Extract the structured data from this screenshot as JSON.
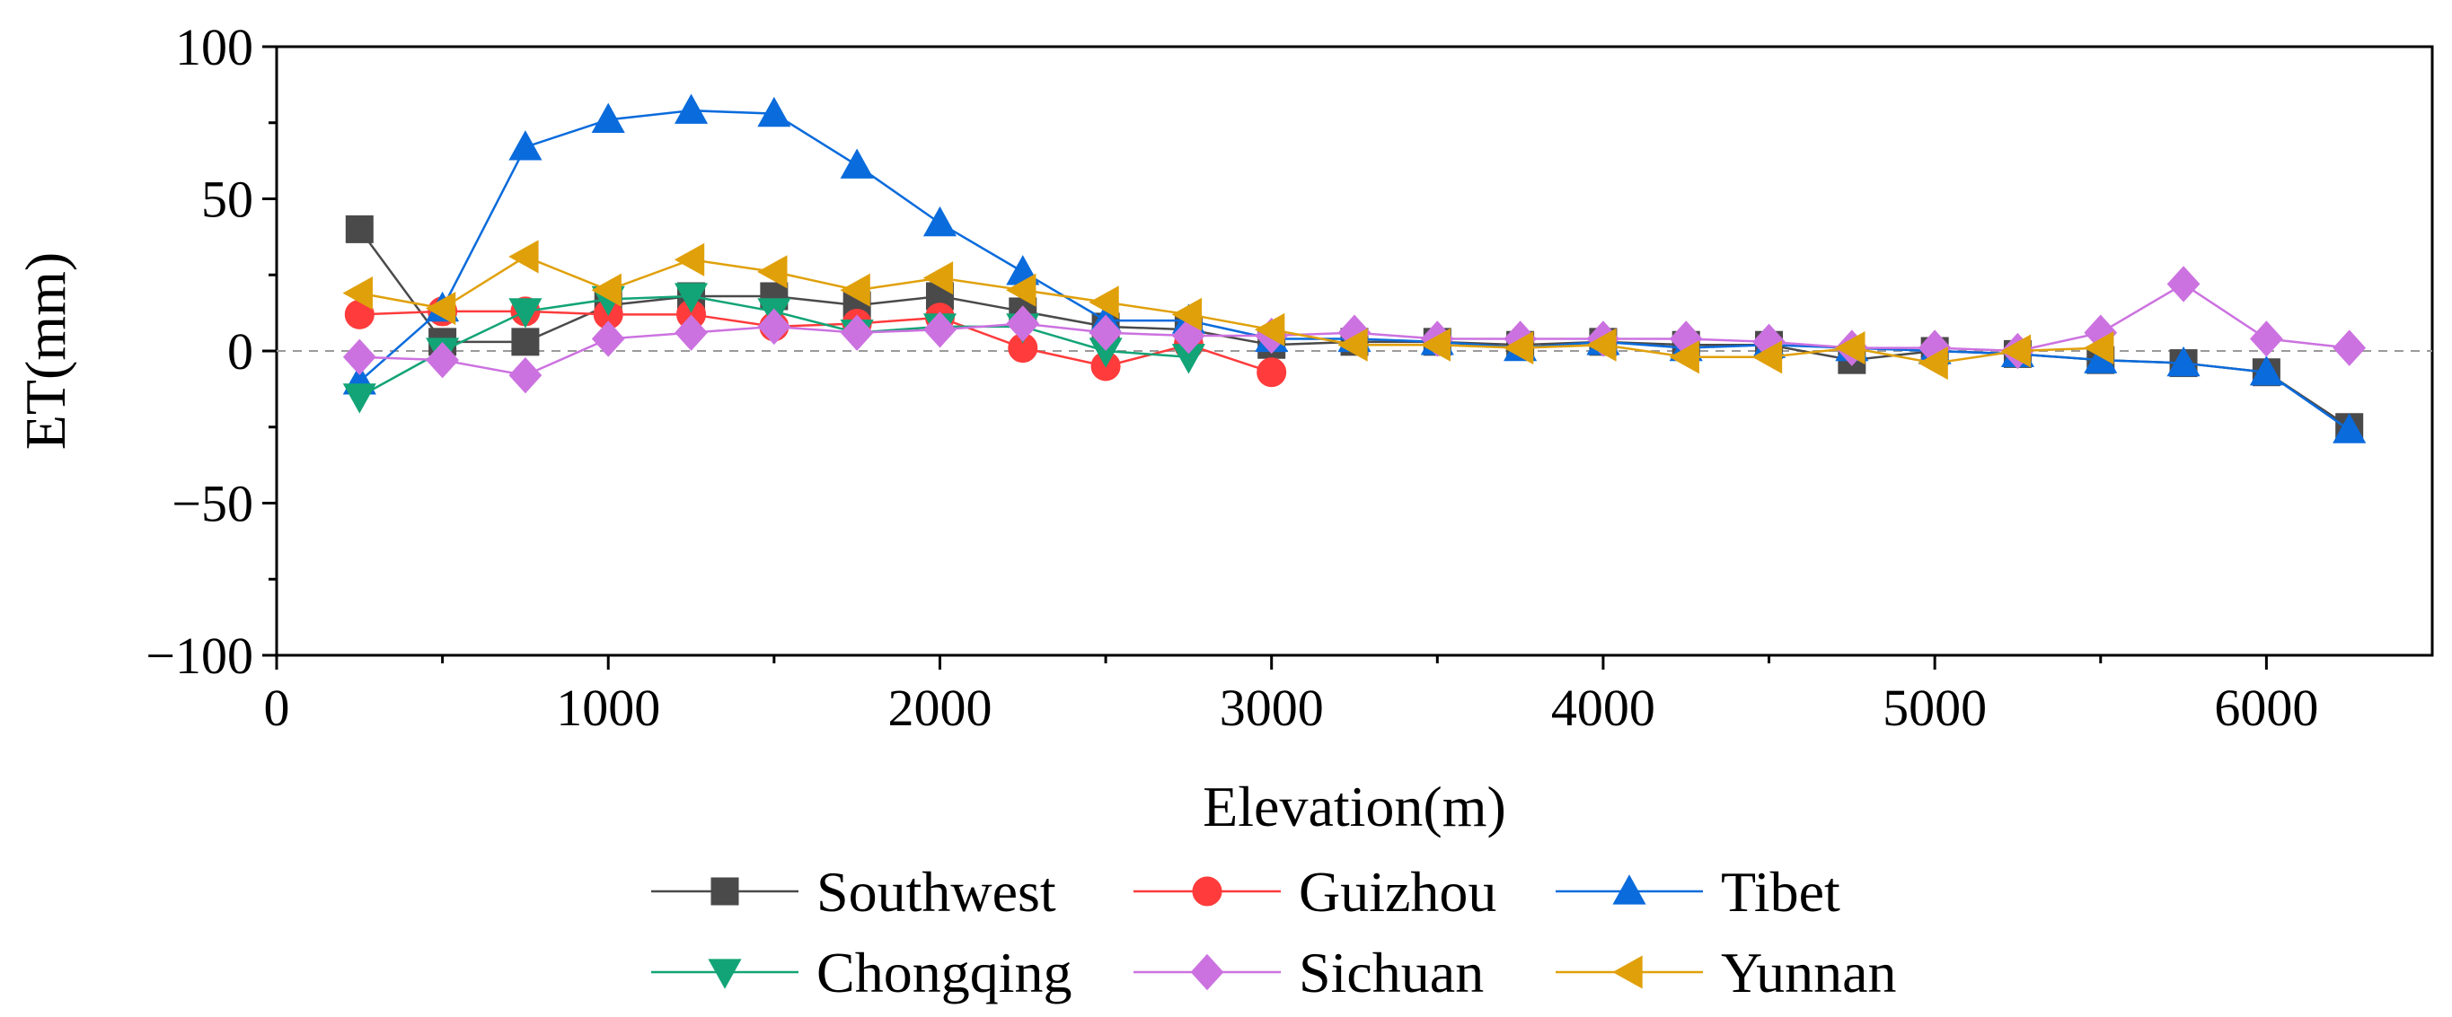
{
  "chart_data": {
    "type": "line",
    "title": "",
    "xlabel": "Elevation(m)",
    "ylabel": "ET(mm)",
    "xlim": [
      0,
      6500
    ],
    "ylim": [
      -100,
      100
    ],
    "x_ticks": [
      0,
      1000,
      2000,
      3000,
      4000,
      5000,
      6000
    ],
    "x_tick_labels": [
      "0",
      "1000",
      "2000",
      "3000",
      "4000",
      "5000",
      "6000"
    ],
    "y_ticks": [
      100,
      50,
      0,
      -50,
      -100
    ],
    "y_tick_labels": [
      "100",
      "50",
      "0",
      "−50",
      "−100"
    ],
    "reference_line": 0,
    "legend_position": "bottom",
    "series": [
      {
        "name": "Southwest",
        "color": "#4a4a4a",
        "marker": "square",
        "points": [
          [
            250,
            40
          ],
          [
            500,
            3
          ],
          [
            750,
            3
          ],
          [
            1000,
            15
          ],
          [
            1250,
            18
          ],
          [
            1500,
            18
          ],
          [
            1750,
            15
          ],
          [
            2000,
            18
          ],
          [
            2250,
            13
          ],
          [
            2500,
            8
          ],
          [
            2750,
            7
          ],
          [
            3000,
            2
          ],
          [
            3250,
            3
          ],
          [
            3500,
            3
          ],
          [
            3750,
            2
          ],
          [
            4000,
            3
          ],
          [
            4250,
            2
          ],
          [
            4500,
            2
          ],
          [
            4750,
            -3
          ],
          [
            5000,
            0
          ],
          [
            5250,
            -1
          ],
          [
            5500,
            -3
          ],
          [
            5750,
            -4
          ],
          [
            6000,
            -7
          ],
          [
            6250,
            -25
          ]
        ]
      },
      {
        "name": "Guizhou",
        "color": "#ff3b3b",
        "marker": "circle",
        "points": [
          [
            250,
            12
          ],
          [
            500,
            13
          ],
          [
            750,
            13
          ],
          [
            1000,
            12
          ],
          [
            1250,
            12
          ],
          [
            1500,
            8
          ],
          [
            1750,
            9
          ],
          [
            2000,
            11
          ],
          [
            2250,
            1
          ],
          [
            2500,
            -5
          ],
          [
            2750,
            2
          ],
          [
            3000,
            -7
          ]
        ]
      },
      {
        "name": "Tibet",
        "color": "#0a6bdc",
        "marker": "triangle-up",
        "points": [
          [
            250,
            -10
          ],
          [
            500,
            14
          ],
          [
            750,
            67
          ],
          [
            1000,
            76
          ],
          [
            1250,
            79
          ],
          [
            1500,
            78
          ],
          [
            1750,
            61
          ],
          [
            2000,
            42
          ],
          [
            2250,
            26
          ],
          [
            2500,
            10
          ],
          [
            2750,
            10
          ],
          [
            3000,
            4
          ],
          [
            3250,
            4
          ],
          [
            3500,
            3
          ],
          [
            3750,
            1
          ],
          [
            4000,
            3
          ],
          [
            4250,
            1
          ],
          [
            4500,
            2
          ],
          [
            4750,
            1
          ],
          [
            5000,
            0
          ],
          [
            5250,
            -1
          ],
          [
            5500,
            -3
          ],
          [
            5750,
            -4
          ],
          [
            6000,
            -7
          ],
          [
            6250,
            -26
          ]
        ]
      },
      {
        "name": "Chongqing",
        "color": "#12a476",
        "marker": "triangle-down",
        "points": [
          [
            250,
            -15
          ],
          [
            500,
            0
          ],
          [
            750,
            13
          ],
          [
            1000,
            17
          ],
          [
            1250,
            18
          ],
          [
            1500,
            13
          ],
          [
            1750,
            6
          ],
          [
            2000,
            8
          ],
          [
            2250,
            8
          ],
          [
            2500,
            0
          ],
          [
            2750,
            -2
          ]
        ]
      },
      {
        "name": "Sichuan",
        "color": "#cc72e0",
        "marker": "diamond",
        "points": [
          [
            250,
            -2
          ],
          [
            500,
            -3
          ],
          [
            750,
            -8
          ],
          [
            1000,
            4
          ],
          [
            1250,
            6
          ],
          [
            1500,
            8
          ],
          [
            1750,
            6
          ],
          [
            2000,
            7
          ],
          [
            2250,
            9
          ],
          [
            2500,
            6
          ],
          [
            2750,
            5
          ],
          [
            3000,
            5
          ],
          [
            3250,
            6
          ],
          [
            3500,
            4
          ],
          [
            3750,
            4
          ],
          [
            4000,
            4
          ],
          [
            4250,
            4
          ],
          [
            4500,
            3
          ],
          [
            4750,
            1
          ],
          [
            5000,
            1
          ],
          [
            5250,
            0
          ],
          [
            5500,
            6
          ],
          [
            5750,
            22
          ],
          [
            6000,
            4
          ],
          [
            6250,
            1
          ]
        ]
      },
      {
        "name": "Yunnan",
        "color": "#e0a00a",
        "marker": "triangle-left",
        "points": [
          [
            250,
            19
          ],
          [
            500,
            14
          ],
          [
            750,
            31
          ],
          [
            1000,
            20
          ],
          [
            1250,
            30
          ],
          [
            1500,
            26
          ],
          [
            1750,
            20
          ],
          [
            2000,
            24
          ],
          [
            2250,
            20
          ],
          [
            2500,
            16
          ],
          [
            2750,
            12
          ],
          [
            3000,
            7
          ],
          [
            3250,
            2
          ],
          [
            3500,
            2
          ],
          [
            3750,
            1
          ],
          [
            4000,
            2
          ],
          [
            4250,
            -2
          ],
          [
            4500,
            -2
          ],
          [
            4750,
            1
          ],
          [
            5000,
            -4
          ],
          [
            5250,
            0
          ],
          [
            5500,
            1
          ]
        ]
      }
    ]
  }
}
